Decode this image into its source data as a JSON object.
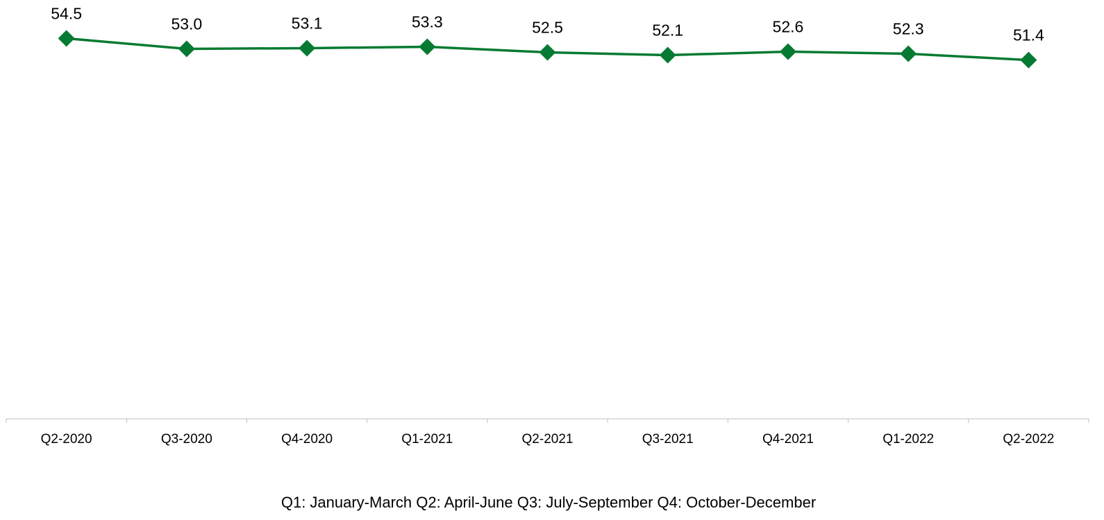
{
  "chart_data": {
    "type": "line",
    "categories": [
      "Q2-2020",
      "Q3-2020",
      "Q4-2020",
      "Q1-2021",
      "Q2-2021",
      "Q3-2021",
      "Q4-2021",
      "Q1-2022",
      "Q2-2022"
    ],
    "series": [
      {
        "color": "#067a32",
        "values": [
          54.5,
          53.0,
          53.1,
          53.3,
          52.5,
          52.1,
          52.6,
          52.3,
          51.4
        ],
        "value_labels": [
          "54.5",
          "53.0",
          "53.1",
          "53.3",
          "52.5",
          "52.1",
          "52.6",
          "52.3",
          "51.4"
        ]
      }
    ],
    "ylim": [
      0,
      60
    ],
    "note": "Q1: January-March  Q2: April-June  Q3: July-September  Q4: October-December"
  }
}
